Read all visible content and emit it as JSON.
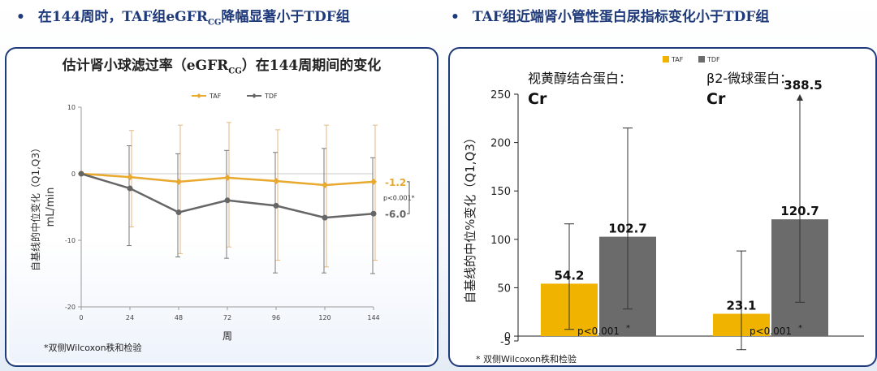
{
  "header": {
    "left_bullet": "在144周时，TAF组eGFR",
    "left_bullet_sub": "CG",
    "left_bullet_tail": "降幅显著小于TDF组",
    "right_bullet": "TAF组近端肾小管性蛋白尿指标变化小于TDF组",
    "bullet_symbol": "•"
  },
  "colors": {
    "taf": "#f0b400",
    "tdf": "#6b6b6b",
    "border": "#1f3a7a",
    "taf_line": "#e8a92e",
    "tdf_line": "#666666"
  },
  "left_chart": {
    "title": "估计肾小球滤过率（eGFR",
    "title_sub": "CG",
    "title_tail": "）在144周期间的变化",
    "ylabel": "自基线的中位变化（Q1,Q3）",
    "ylabel_unit": "mL/min",
    "xlabel": "周",
    "footnote": "*双侧Wilcoxon秩和检验",
    "legend": [
      "TAF",
      "TDF"
    ],
    "pvalue": "p<0.001*",
    "end_labels": [
      "-1.2",
      "-6.0"
    ]
  },
  "right_chart": {
    "legend": [
      "TAF",
      "TDF"
    ],
    "ylabel": "自基线的中位%变化（Q1,Q3）",
    "footnote_star": "*",
    "footnote": "双侧Wilcoxon秩和检验",
    "groups": [
      {
        "label": "视黄醇结合蛋白：",
        "sub": "Cr",
        "p": "p<0.001",
        "p_star": "*"
      },
      {
        "label": "β2-微球蛋白：",
        "sub": "Cr",
        "p": "p<0.001",
        "p_star": "*"
      }
    ]
  },
  "chart_data": [
    {
      "type": "line",
      "title": "估计肾小球滤过率（eGFRCG）在144周期间的变化",
      "xlabel": "周",
      "ylabel": "自基线的中位变化（Q1,Q3） mL/min",
      "x": [
        0,
        24,
        48,
        72,
        96,
        120,
        144
      ],
      "xlim": [
        0,
        144
      ],
      "ylim": [
        -20,
        10
      ],
      "yticks": [
        10,
        0,
        -10,
        -20
      ],
      "series": [
        {
          "name": "TAF",
          "values": [
            0,
            -0.5,
            -1.2,
            -0.6,
            -1.1,
            -1.7,
            -1.2
          ],
          "q1": [
            0,
            -8,
            -12,
            -11,
            -13,
            -14,
            -13
          ],
          "q3": [
            0,
            6.5,
            7.3,
            7.7,
            6.6,
            7.3,
            7.3
          ]
        },
        {
          "name": "TDF",
          "values": [
            0,
            -2.2,
            -5.8,
            -4.0,
            -4.8,
            -6.6,
            -6.0
          ],
          "q1": [
            0,
            -10.8,
            -12.5,
            -12.7,
            -14.9,
            -14.9,
            -15
          ],
          "q3": [
            0,
            4.2,
            3.0,
            3.5,
            3.2,
            3.8,
            2.4
          ]
        }
      ],
      "annotations": [
        "-1.2",
        "-6.0",
        "p<0.001*"
      ],
      "legend_position": "top-center"
    },
    {
      "type": "bar",
      "categories": [
        "视黄醇结合蛋白：Cr",
        "β2-微球蛋白：Cr"
      ],
      "ylabel": "自基线的中位%变化（Q1,Q3）",
      "ylim": [
        -5,
        250
      ],
      "yticks": [
        -5,
        0,
        50,
        100,
        150,
        200,
        250
      ],
      "series": [
        {
          "name": "TAF",
          "values": [
            54.2,
            23.1
          ],
          "q1": [
            7,
            -14
          ],
          "q3": [
            116,
            88
          ]
        },
        {
          "name": "TDF",
          "values": [
            102.7,
            120.7
          ],
          "q1": [
            28,
            35
          ],
          "q3": [
            215,
            388.5
          ]
        }
      ],
      "data_labels": [
        "54.2",
        "23.1",
        "102.7",
        "120.7",
        "388.5"
      ],
      "legend_position": "top-right"
    }
  ]
}
